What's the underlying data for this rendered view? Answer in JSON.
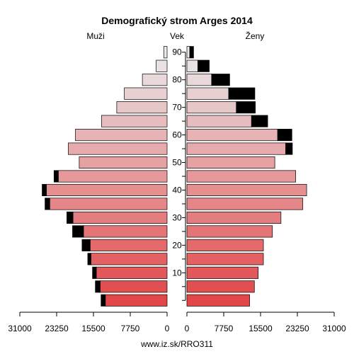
{
  "chart_data": {
    "type": "bar",
    "title": "Demografický strom Arges 2014",
    "left_label": "Muži",
    "right_label": "Ženy",
    "center_label": "Vek",
    "footer": "www.iz.sk/RRO311",
    "xlim": [
      31000,
      0,
      31000
    ],
    "x_ticks_left": [
      "31000",
      "23250",
      "15500",
      "7750",
      "0"
    ],
    "x_tick_values_left": [
      31000,
      23250,
      15500,
      7750,
      0
    ],
    "x_ticks_right": [
      "0",
      "7750",
      "15500",
      "23250",
      "31000"
    ],
    "x_tick_values_right": [
      0,
      7750,
      15500,
      23250,
      31000
    ],
    "age_ticks": [
      "10",
      "20",
      "30",
      "40",
      "50",
      "60",
      "70",
      "80",
      "90"
    ],
    "age_tick_values": [
      10,
      20,
      30,
      40,
      50,
      60,
      70,
      80,
      90
    ],
    "age_groups": [
      0,
      5,
      10,
      15,
      20,
      25,
      30,
      35,
      40,
      45,
      50,
      55,
      60,
      65,
      70,
      75,
      80,
      85,
      90
    ],
    "series": [
      {
        "name": "Muži",
        "values": [
          13000,
          14100,
          14900,
          16000,
          16200,
          17600,
          19800,
          24700,
          25400,
          22900,
          18500,
          20800,
          19300,
          13800,
          10600,
          9000,
          5200,
          2300,
          700
        ],
        "excess": [
          900,
          1000,
          800,
          700,
          1700,
          2300,
          1300,
          1000,
          900,
          900,
          0,
          0,
          0,
          0,
          0,
          0,
          0,
          0,
          0
        ]
      },
      {
        "name": "Ženy",
        "values": [
          13200,
          14200,
          15000,
          16100,
          16100,
          18000,
          19800,
          24400,
          25200,
          22900,
          18500,
          20800,
          19100,
          13600,
          10400,
          8800,
          5200,
          2300,
          600
        ],
        "excess": [
          0,
          0,
          0,
          0,
          0,
          0,
          0,
          0,
          0,
          0,
          0,
          1400,
          3000,
          3400,
          4000,
          5500,
          3800,
          2400,
          800
        ]
      }
    ]
  }
}
